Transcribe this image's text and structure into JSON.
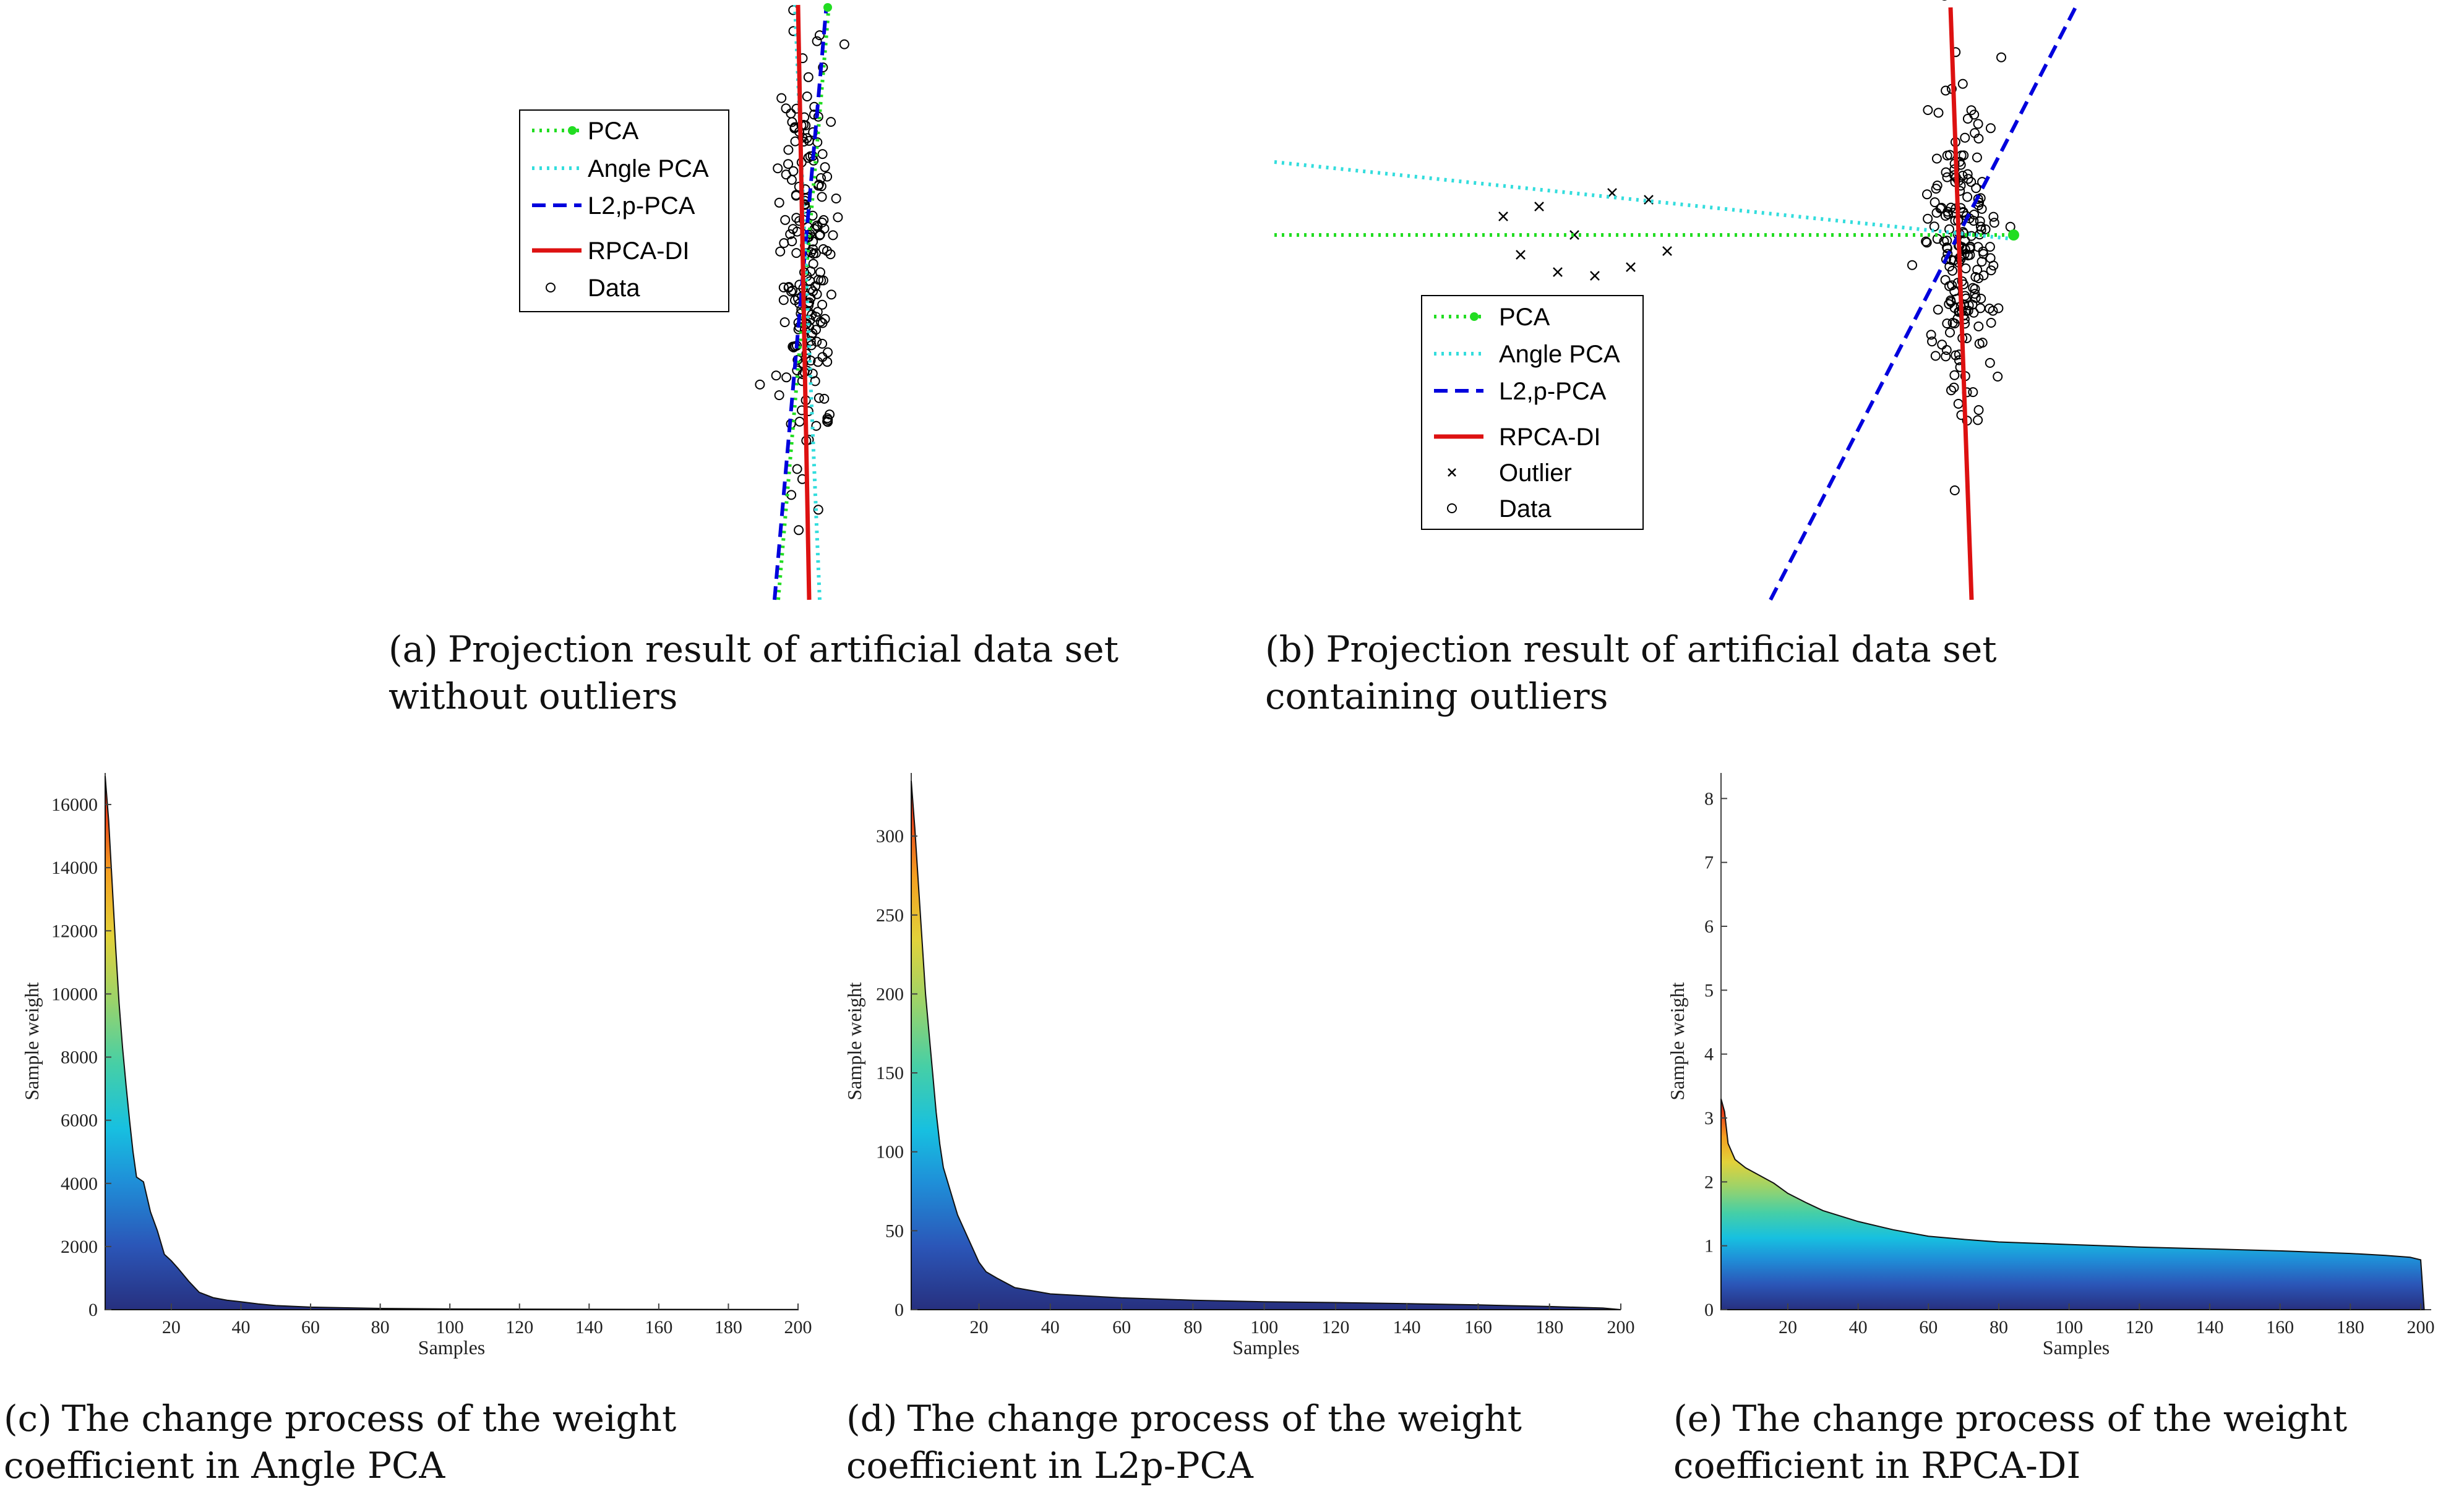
{
  "captions": {
    "a": {
      "label": "(a)",
      "text": "Projection result of artificial data set without outliers"
    },
    "b": {
      "label": "(b)",
      "text": "Projection result of artificial data set containing outliers"
    },
    "c": {
      "label": "(c)",
      "text": "The change process of the weight coefficient in Angle PCA"
    },
    "d": {
      "label": "(d)",
      "text": "The change process of the weight coefficient in L2p-PCA"
    },
    "e": {
      "label": "(e)",
      "text": "The change process of the weight coefficient in RPCA-DI"
    }
  },
  "legend_a": [
    "PCA",
    "Angle PCA",
    "L2,p-PCA",
    "RPCA-DI",
    "Data"
  ],
  "legend_b": [
    "PCA",
    "Angle PCA",
    "L2,p-PCA",
    "RPCA-DI",
    "Outlier",
    "Data"
  ],
  "colors": {
    "pca": "#22dd22",
    "angle": "#33dddd",
    "l2p": "#0000dd",
    "rpca": "#dd1111",
    "data": "#000000"
  },
  "chart_data": [
    {
      "type": "scatter",
      "id": "a",
      "series": [
        {
          "name": "PCA",
          "style": "dotted-green-line"
        },
        {
          "name": "Angle PCA",
          "style": "dotted-cyan-line"
        },
        {
          "name": "L2,p-PCA",
          "style": "dashed-blue-line"
        },
        {
          "name": "RPCA-DI",
          "style": "solid-red-line"
        },
        {
          "name": "Data",
          "style": "open-circle",
          "count": 200
        }
      ],
      "axes_visible": false
    },
    {
      "type": "scatter",
      "id": "b",
      "series": [
        {
          "name": "PCA",
          "style": "dotted-green-line"
        },
        {
          "name": "Angle PCA",
          "style": "dotted-cyan-line"
        },
        {
          "name": "L2,p-PCA",
          "style": "dashed-blue-line"
        },
        {
          "name": "RPCA-DI",
          "style": "solid-red-line"
        },
        {
          "name": "Outlier",
          "style": "x-marker",
          "count": 10
        },
        {
          "name": "Data",
          "style": "open-circle",
          "count": 200
        }
      ],
      "axes_visible": false
    },
    {
      "type": "area",
      "id": "c",
      "xlabel": "Samples",
      "ylabel": "Sample weight",
      "xlim": [
        1,
        200
      ],
      "ylim": [
        0,
        17000
      ],
      "xticks": [
        20,
        40,
        60,
        80,
        100,
        120,
        140,
        160,
        180,
        200
      ],
      "yticks": [
        0,
        2000,
        4000,
        6000,
        8000,
        10000,
        12000,
        14000,
        16000
      ],
      "curve": [
        [
          1,
          16900
        ],
        [
          2,
          15500
        ],
        [
          3,
          13500
        ],
        [
          4,
          11500
        ],
        [
          5,
          9700
        ],
        [
          6,
          8300
        ],
        [
          7,
          7100
        ],
        [
          8,
          6000
        ],
        [
          9,
          5000
        ],
        [
          10,
          4200
        ],
        [
          12,
          4050
        ],
        [
          14,
          3100
        ],
        [
          16,
          2500
        ],
        [
          18,
          1750
        ],
        [
          20,
          1550
        ],
        [
          22,
          1300
        ],
        [
          25,
          900
        ],
        [
          28,
          550
        ],
        [
          32,
          380
        ],
        [
          36,
          300
        ],
        [
          40,
          250
        ],
        [
          45,
          180
        ],
        [
          50,
          130
        ],
        [
          60,
          80
        ],
        [
          80,
          40
        ],
        [
          100,
          22
        ],
        [
          140,
          12
        ],
        [
          200,
          4
        ]
      ]
    },
    {
      "type": "area",
      "id": "d",
      "xlabel": "Samples",
      "ylabel": "Sample weight",
      "xlim": [
        1,
        200
      ],
      "ylim": [
        0,
        340
      ],
      "xticks": [
        20,
        40,
        60,
        80,
        100,
        120,
        140,
        160,
        180,
        200
      ],
      "yticks": [
        0,
        50,
        100,
        150,
        200,
        250,
        300
      ],
      "curve": [
        [
          1,
          335
        ],
        [
          2,
          305
        ],
        [
          3,
          270
        ],
        [
          4,
          235
        ],
        [
          5,
          200
        ],
        [
          6,
          175
        ],
        [
          7,
          150
        ],
        [
          8,
          125
        ],
        [
          9,
          105
        ],
        [
          10,
          90
        ],
        [
          12,
          75
        ],
        [
          14,
          60
        ],
        [
          17,
          45
        ],
        [
          20,
          30
        ],
        [
          22,
          24
        ],
        [
          25,
          20
        ],
        [
          30,
          14
        ],
        [
          40,
          10
        ],
        [
          60,
          7.5
        ],
        [
          80,
          6
        ],
        [
          100,
          5
        ],
        [
          120,
          4.5
        ],
        [
          140,
          3.8
        ],
        [
          160,
          3
        ],
        [
          180,
          2
        ],
        [
          195,
          1
        ],
        [
          200,
          0
        ]
      ]
    },
    {
      "type": "area",
      "id": "e",
      "xlabel": "Samples",
      "ylabel": "Sample weight",
      "xlim": [
        1,
        203
      ],
      "ylim": [
        0,
        8.4
      ],
      "xticks": [
        20,
        40,
        60,
        80,
        100,
        120,
        140,
        160,
        180,
        200
      ],
      "yticks": [
        0,
        1,
        2,
        3,
        4,
        5,
        6,
        7,
        8
      ],
      "curve": [
        [
          1,
          3.3
        ],
        [
          2,
          3.1
        ],
        [
          3,
          2.6
        ],
        [
          5,
          2.35
        ],
        [
          8,
          2.22
        ],
        [
          12,
          2.1
        ],
        [
          16,
          1.98
        ],
        [
          20,
          1.82
        ],
        [
          25,
          1.68
        ],
        [
          30,
          1.55
        ],
        [
          40,
          1.38
        ],
        [
          50,
          1.25
        ],
        [
          60,
          1.15
        ],
        [
          70,
          1.1
        ],
        [
          80,
          1.06
        ],
        [
          100,
          1.02
        ],
        [
          120,
          0.98
        ],
        [
          140,
          0.95
        ],
        [
          160,
          0.92
        ],
        [
          180,
          0.88
        ],
        [
          190,
          0.85
        ],
        [
          197,
          0.82
        ],
        [
          200,
          0.78
        ],
        [
          201,
          0
        ]
      ]
    }
  ]
}
